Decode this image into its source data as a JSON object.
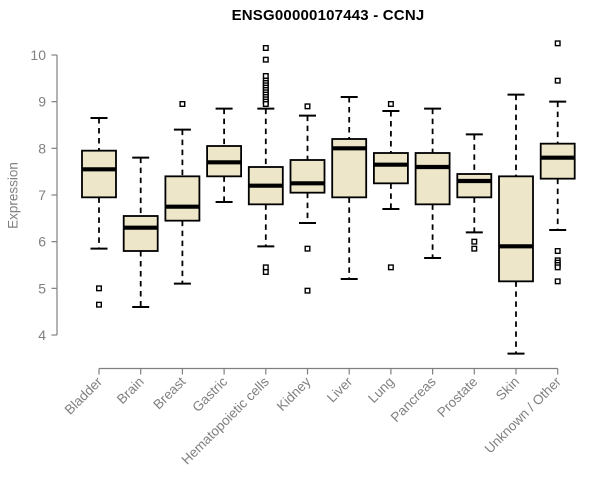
{
  "chart_data": {
    "type": "boxplot",
    "title": "ENSG00000107443 - CCNJ",
    "ylabel": "Expression",
    "xlabel": "",
    "ylim": [
      4,
      10
    ],
    "yticks": [
      4,
      5,
      6,
      7,
      8,
      9,
      10
    ],
    "grid": false,
    "legend": "none",
    "categories": [
      "Bladder",
      "Brain",
      "Breast",
      "Gastric",
      "Hematopoietic cells",
      "Kidney",
      "Liver",
      "Lung",
      "Pancreas",
      "Prostate",
      "Skin",
      "Unknown / Other"
    ],
    "series": [
      {
        "category": "Bladder",
        "whisker_low": 5.85,
        "q1": 6.95,
        "median": 7.55,
        "q3": 7.95,
        "whisker_high": 8.65,
        "outliers": [
          5.0,
          4.65
        ]
      },
      {
        "category": "Brain",
        "whisker_low": 4.6,
        "q1": 5.8,
        "median": 6.3,
        "q3": 6.55,
        "whisker_high": 7.8,
        "outliers": []
      },
      {
        "category": "Breast",
        "whisker_low": 5.1,
        "q1": 6.45,
        "median": 6.75,
        "q3": 7.4,
        "whisker_high": 8.4,
        "outliers": [
          8.95
        ]
      },
      {
        "category": "Gastric",
        "whisker_low": 6.85,
        "q1": 7.4,
        "median": 7.7,
        "q3": 8.05,
        "whisker_high": 8.85,
        "outliers": []
      },
      {
        "category": "Hematopoietic cells",
        "whisker_low": 5.9,
        "q1": 6.8,
        "median": 7.2,
        "q3": 7.6,
        "whisker_high": 8.85,
        "outliers": [
          10.15,
          9.9,
          9.55,
          9.45,
          9.4,
          9.35,
          9.3,
          9.25,
          9.2,
          9.15,
          9.1,
          9.05,
          9.0,
          8.95,
          5.45,
          5.35
        ]
      },
      {
        "category": "Kidney",
        "whisker_low": 6.4,
        "q1": 7.05,
        "median": 7.25,
        "q3": 7.75,
        "whisker_high": 8.7,
        "outliers": [
          8.9,
          5.85,
          4.95
        ]
      },
      {
        "category": "Liver",
        "whisker_low": 5.2,
        "q1": 6.95,
        "median": 8.0,
        "q3": 8.2,
        "whisker_high": 9.1,
        "outliers": []
      },
      {
        "category": "Lung",
        "whisker_low": 6.7,
        "q1": 7.25,
        "median": 7.65,
        "q3": 7.9,
        "whisker_high": 8.8,
        "outliers": [
          8.95,
          5.45
        ]
      },
      {
        "category": "Pancreas",
        "whisker_low": 5.65,
        "q1": 6.8,
        "median": 7.6,
        "q3": 7.9,
        "whisker_high": 8.85,
        "outliers": []
      },
      {
        "category": "Prostate",
        "whisker_low": 6.2,
        "q1": 6.95,
        "median": 7.3,
        "q3": 7.45,
        "whisker_high": 8.3,
        "outliers": [
          6.0,
          5.85
        ]
      },
      {
        "category": "Skin",
        "whisker_low": 3.6,
        "q1": 5.15,
        "median": 5.9,
        "q3": 7.4,
        "whisker_high": 9.15,
        "outliers": []
      },
      {
        "category": "Unknown / Other",
        "whisker_low": 6.25,
        "q1": 7.35,
        "median": 7.8,
        "q3": 8.1,
        "whisker_high": 9.0,
        "outliers": [
          10.25,
          9.45,
          5.8,
          5.6,
          5.55,
          5.5,
          5.45,
          5.15
        ]
      }
    ],
    "colors": {
      "box_fill": "#EDE6C9",
      "box_stroke": "#000000",
      "median": "#000000",
      "outlier_fill": "#FFFFFF",
      "axis": "#808080",
      "tick_label": "#808080",
      "title": "#000000",
      "background": "#FFFFFF"
    }
  }
}
